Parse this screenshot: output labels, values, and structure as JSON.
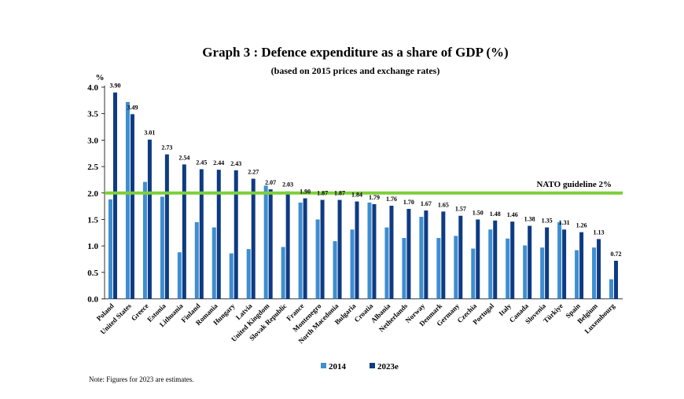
{
  "chart_data": {
    "type": "bar",
    "title": "Graph 3 : Defence expenditure as a share of GDP (%)",
    "subtitle": "(based on 2015 prices and exchange rates)",
    "ylabel": "%",
    "ylim": [
      0,
      4.0
    ],
    "yticks": [
      "0.0",
      "0.5",
      "1.0",
      "1.5",
      "2.0",
      "2.5",
      "3.0",
      "3.5",
      "4.0"
    ],
    "grid": false,
    "legend_position": "bottom",
    "categories": [
      "Poland",
      "United States",
      "Greece",
      "Estonia",
      "Lithuania",
      "Finland",
      "Romania",
      "Hungary",
      "Latvia",
      "United Kingdom",
      "Slovak Republic",
      "France",
      "Montenegro",
      "North Macedonia",
      "Bulgaria",
      "Croatia",
      "Albania",
      "Netherlands",
      "Norway",
      "Denmark",
      "Germany",
      "Czechia",
      "Portugal",
      "Italy",
      "Canada",
      "Slovenia",
      "Türkiye",
      "Spain",
      "Belgium",
      "Luxembourg"
    ],
    "series": [
      {
        "name": "2014",
        "color": "#3e8ed0",
        "values": [
          1.88,
          3.72,
          2.21,
          1.93,
          0.88,
          1.45,
          1.35,
          0.86,
          0.94,
          2.14,
          0.98,
          1.82,
          1.5,
          1.09,
          1.31,
          1.82,
          1.35,
          1.15,
          1.55,
          1.15,
          1.19,
          0.95,
          1.31,
          1.14,
          1.01,
          0.97,
          1.45,
          0.92,
          0.97,
          0.37
        ]
      },
      {
        "name": "2023e",
        "color": "#0e3b83",
        "values": [
          3.9,
          3.49,
          3.01,
          2.73,
          2.54,
          2.45,
          2.44,
          2.43,
          2.27,
          2.07,
          2.03,
          1.9,
          1.87,
          1.87,
          1.84,
          1.79,
          1.76,
          1.7,
          1.67,
          1.65,
          1.57,
          1.5,
          1.48,
          1.46,
          1.38,
          1.35,
          1.31,
          1.26,
          1.13,
          0.72
        ]
      }
    ],
    "data_labels": [
      "3.90",
      "3.49",
      "3.01",
      "2.73",
      "2.54",
      "2.45",
      "2.44",
      "2.43",
      "2.27",
      "2.07",
      "2.03",
      "1.90",
      "1.87",
      "1.87",
      "1.84",
      "1.79",
      "1.76",
      "1.70",
      "1.67",
      "1.65",
      "1.57",
      "1.50",
      "1.48",
      "1.46",
      "1.38",
      "1.35",
      "1.31",
      "1.26",
      "1.13",
      "0.72"
    ],
    "reference_line": {
      "value": 2.0,
      "label": "NATO guideline 2%",
      "color": "#7dcf3b"
    }
  },
  "note": "Note: Figures for 2023 are estimates."
}
